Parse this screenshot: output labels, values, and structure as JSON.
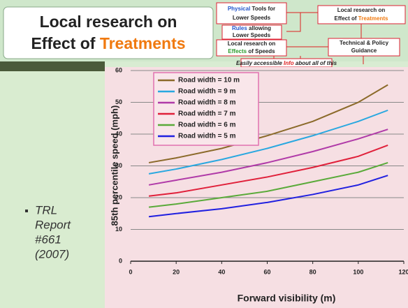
{
  "slide": {
    "title": {
      "line1": "Local research on",
      "line2a": "Effect of",
      "line2b": "Treatments"
    },
    "boxes": {
      "physical": {
        "a": "Physical",
        "b": "Tools for",
        "c": "Lower Speeds"
      },
      "rules": {
        "a": "Rules",
        "b": "allowing",
        "c": "Lower Speeds"
      },
      "effects": {
        "a": "Local research on",
        "b": "Effects",
        "c": "of Speeds"
      },
      "treatments": {
        "a": "Local research on",
        "b": "Effect of",
        "c": "Treatments"
      },
      "guidance": {
        "a": "Technical & Policy",
        "b": "Guidance"
      },
      "info": {
        "a": "Easily accessible",
        "b": "Info",
        "c": "about all of this"
      }
    },
    "bullet": [
      "TRL",
      "Report",
      "#661",
      "(2007)"
    ]
  },
  "chart_data": {
    "type": "line",
    "x_label": "Forward visibility (m)",
    "y_label": "85th percentile speed (mph)",
    "x": [
      8,
      20,
      40,
      60,
      80,
      100,
      113
    ],
    "series": [
      {
        "name": "Road width = 10 m",
        "color": "#8b6a2a",
        "values": [
          31,
          32.5,
          35.5,
          39.5,
          44,
          50,
          55.5
        ]
      },
      {
        "name": "Road width = 9 m",
        "color": "#29a8e0",
        "values": [
          27.5,
          29,
          32,
          35.5,
          39.5,
          44,
          47.5
        ]
      },
      {
        "name": "Road width = 8 m",
        "color": "#b03aa8",
        "values": [
          24,
          25.5,
          28,
          31,
          34.5,
          38.5,
          41.5
        ]
      },
      {
        "name": "Road width = 7 m",
        "color": "#e0203a",
        "values": [
          20.5,
          21.5,
          24,
          26.5,
          29.5,
          33,
          36.5
        ]
      },
      {
        "name": "Road width = 6 m",
        "color": "#5aaa3a",
        "values": [
          17,
          18,
          20,
          22,
          25,
          28,
          31
        ]
      },
      {
        "name": "Road width = 5 m",
        "color": "#2020e0",
        "values": [
          14,
          15,
          16.5,
          18.5,
          21,
          24,
          27
        ]
      }
    ],
    "xlim": [
      0,
      120
    ],
    "xticks": [
      0,
      20,
      40,
      60,
      80,
      100,
      120
    ],
    "ylim": [
      0,
      60
    ],
    "yticks": [
      0,
      10,
      20,
      30,
      40,
      50,
      60
    ],
    "grid": true,
    "legend": "upper left"
  }
}
